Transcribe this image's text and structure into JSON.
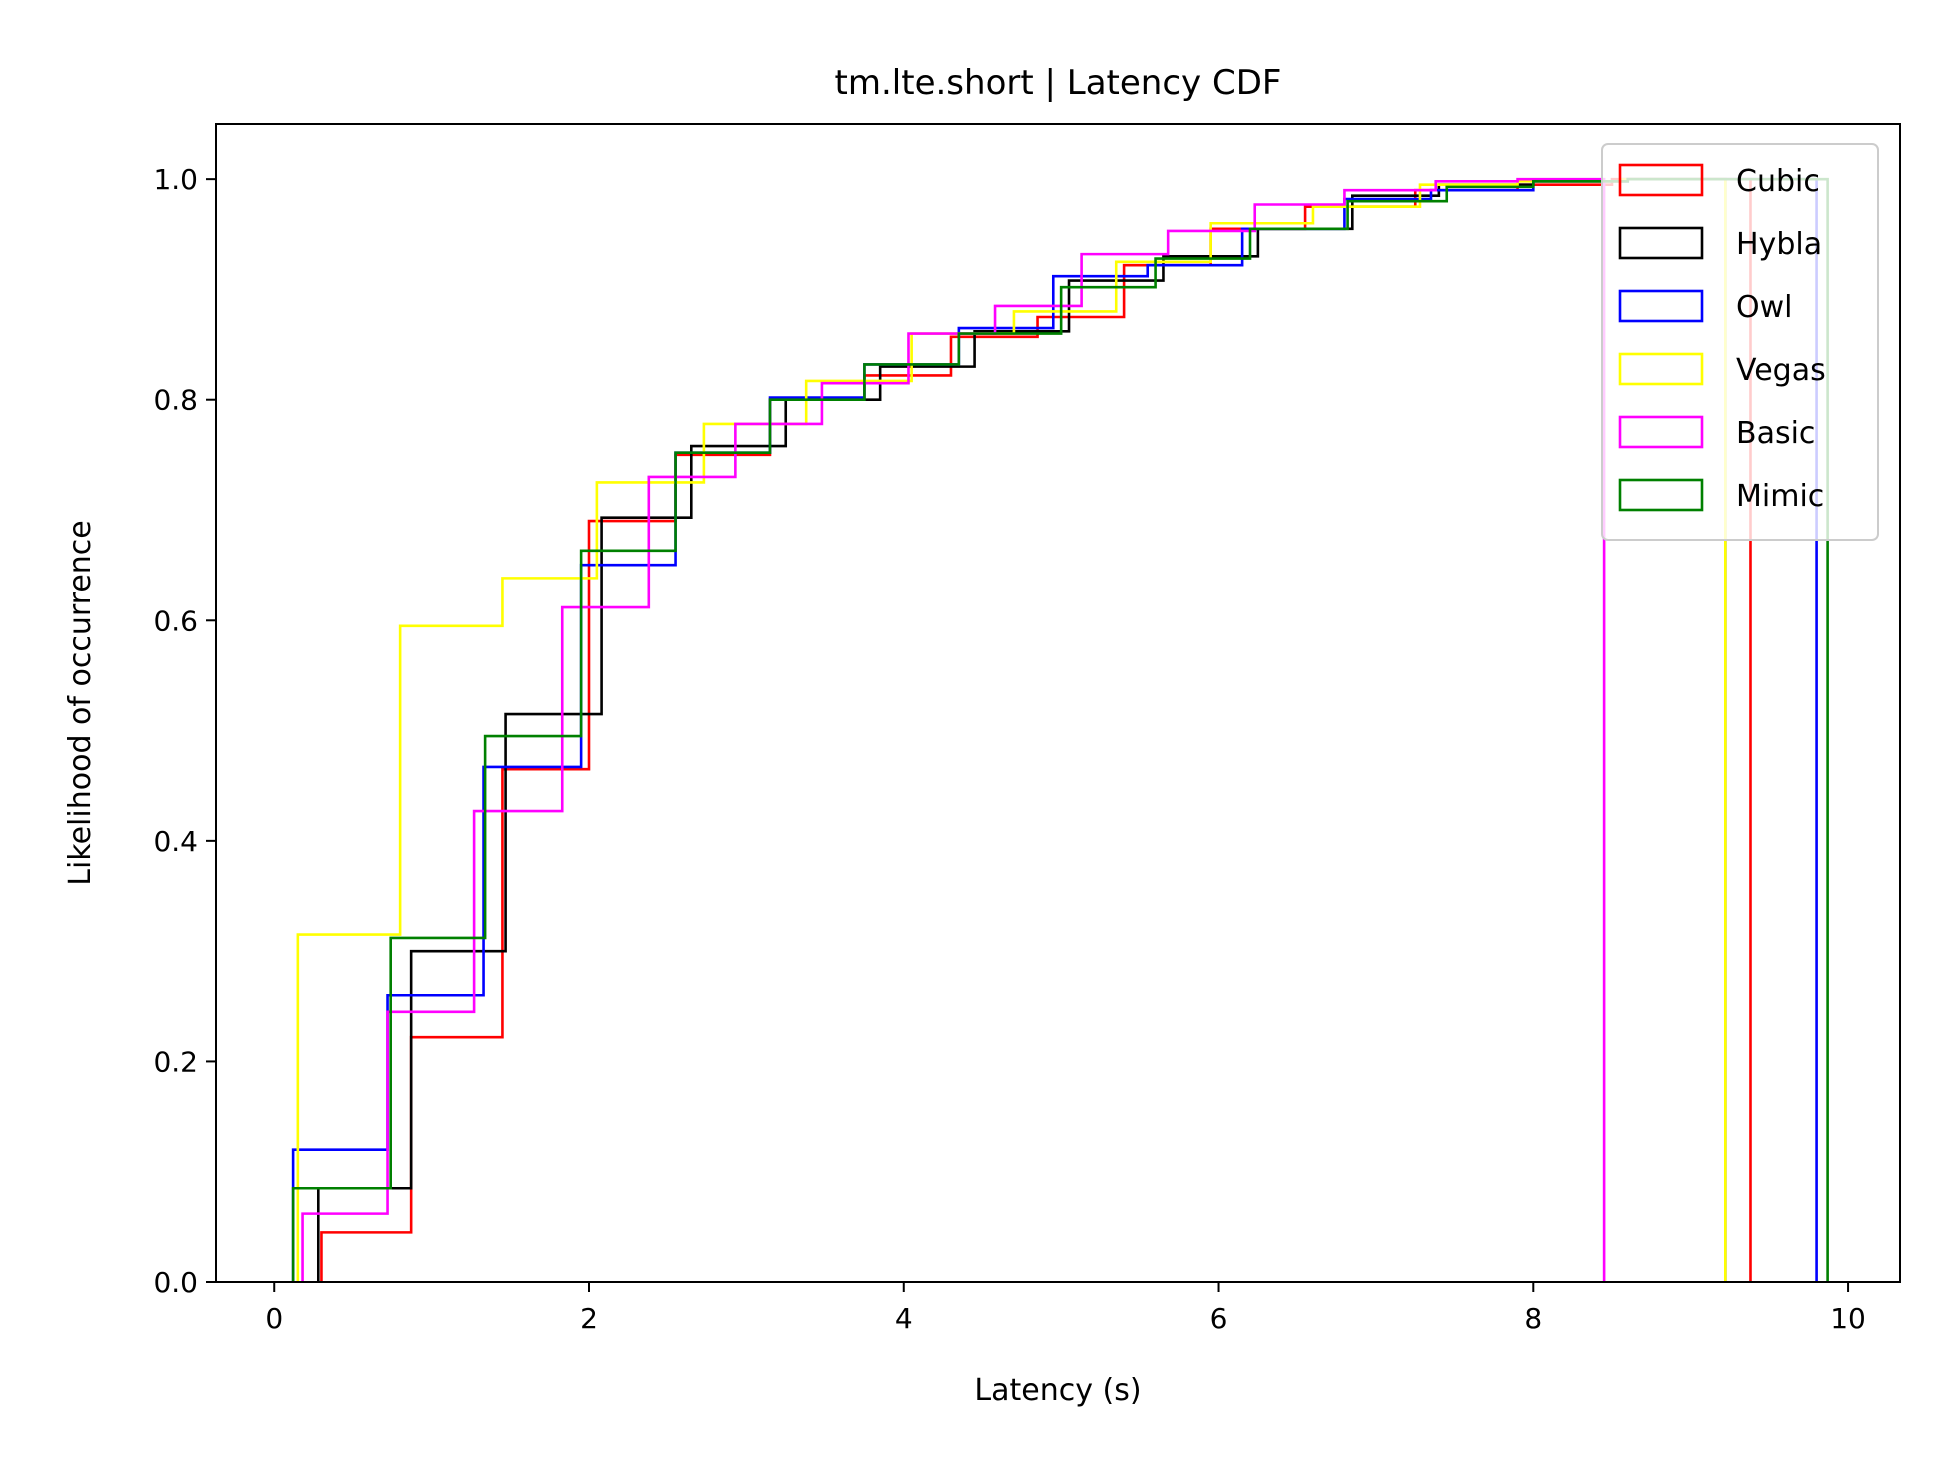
{
  "chart_data": {
    "type": "line",
    "subtype": "step-cdf",
    "title": "tm.lte.short | Latency CDF",
    "xlabel": "Latency (s)",
    "ylabel": "Likelihood of occurrence",
    "xlim": [
      -0.37,
      10.33
    ],
    "ylim": [
      0,
      1.05
    ],
    "xticks": [
      0,
      2,
      4,
      6,
      8,
      10
    ],
    "xtick_labels": [
      "0",
      "2",
      "4",
      "6",
      "8",
      "10"
    ],
    "yticks": [
      0.0,
      0.2,
      0.4,
      0.6,
      0.8,
      1.0
    ],
    "ytick_labels": [
      "0.0",
      "0.2",
      "0.4",
      "0.6",
      "0.8",
      "1.0"
    ],
    "grid": false,
    "legend_position": "top-right",
    "series": [
      {
        "name": "Cubic",
        "color": "#ff0000",
        "x": [
          0.3,
          0.87,
          1.45,
          2.0,
          2.55,
          3.15,
          3.75,
          4.3,
          4.85,
          5.4,
          5.95,
          6.55,
          7.25,
          7.9,
          8.5,
          9.38
        ],
        "y": [
          0.045,
          0.222,
          0.465,
          0.69,
          0.75,
          0.8,
          0.822,
          0.857,
          0.875,
          0.922,
          0.955,
          0.975,
          0.99,
          0.995,
          1.0,
          1.0
        ]
      },
      {
        "name": "Hybla",
        "color": "#000000",
        "x": [
          0.28,
          0.87,
          1.47,
          2.08,
          2.65,
          3.25,
          3.85,
          4.45,
          5.05,
          5.65,
          6.25,
          6.85,
          7.4,
          8.0,
          8.6,
          9.22
        ],
        "y": [
          0.085,
          0.3,
          0.515,
          0.693,
          0.758,
          0.8,
          0.83,
          0.862,
          0.908,
          0.93,
          0.955,
          0.985,
          0.995,
          0.998,
          1.0,
          1.0
        ]
      },
      {
        "name": "Owl",
        "color": "#0000ff",
        "x": [
          0.12,
          0.72,
          1.33,
          1.95,
          2.55,
          3.15,
          3.75,
          4.35,
          4.95,
          5.55,
          6.15,
          6.8,
          7.35,
          8.0,
          8.6,
          9.8
        ],
        "y": [
          0.12,
          0.26,
          0.467,
          0.65,
          0.752,
          0.802,
          0.832,
          0.865,
          0.912,
          0.922,
          0.955,
          0.982,
          0.99,
          0.998,
          1.0,
          1.0
        ]
      },
      {
        "name": "Vegas",
        "color": "#ffff00",
        "x": [
          0.15,
          0.8,
          1.45,
          2.05,
          2.73,
          3.38,
          4.05,
          4.7,
          5.35,
          5.95,
          6.6,
          7.28,
          7.9,
          8.55,
          9.22
        ],
        "y": [
          0.315,
          0.595,
          0.638,
          0.725,
          0.778,
          0.817,
          0.86,
          0.88,
          0.925,
          0.96,
          0.975,
          0.995,
          0.998,
          1.0,
          1.0
        ]
      },
      {
        "name": "Basic",
        "color": "#ff00ff",
        "x": [
          0.18,
          0.72,
          1.27,
          1.83,
          2.38,
          2.93,
          3.48,
          4.03,
          4.58,
          5.13,
          5.68,
          6.23,
          6.8,
          7.38,
          7.9,
          8.45
        ],
        "y": [
          0.062,
          0.245,
          0.427,
          0.612,
          0.73,
          0.778,
          0.815,
          0.86,
          0.885,
          0.932,
          0.953,
          0.977,
          0.99,
          0.998,
          1.0,
          1.0
        ]
      },
      {
        "name": "Mimic",
        "color": "#008000",
        "x": [
          0.12,
          0.74,
          1.34,
          1.95,
          2.55,
          3.15,
          3.75,
          4.35,
          5.0,
          5.6,
          6.2,
          6.82,
          7.45,
          8.0,
          8.6,
          9.87
        ],
        "y": [
          0.085,
          0.312,
          0.495,
          0.663,
          0.752,
          0.8,
          0.832,
          0.86,
          0.902,
          0.928,
          0.955,
          0.98,
          0.993,
          0.998,
          1.0,
          1.0
        ]
      }
    ]
  }
}
